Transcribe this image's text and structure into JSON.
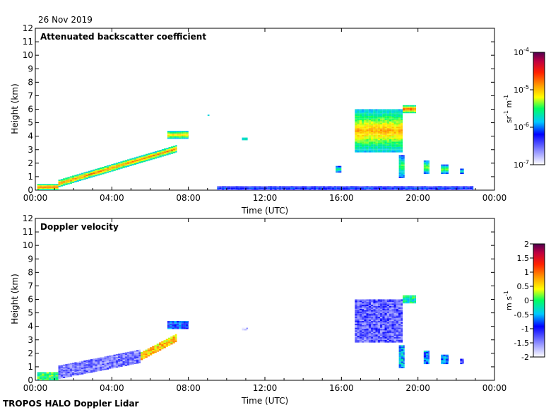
{
  "date": "26 Nov 2019",
  "footer": "TROPOS HALO Doppler Lidar",
  "chart_data": [
    {
      "type": "heatmap",
      "title": "Attenuated backscatter coefficient",
      "xlabel": "Time (UTC)",
      "ylabel": "Height (km)",
      "xlim": [
        0,
        24
      ],
      "ylim": [
        0,
        12
      ],
      "x_ticks": [
        "00:00",
        "04:00",
        "08:00",
        "12:00",
        "16:00",
        "20:00",
        "00:00"
      ],
      "y_ticks": [
        "0",
        "1",
        "2",
        "3",
        "4",
        "5",
        "6",
        "7",
        "8",
        "9",
        "10",
        "11",
        "12"
      ],
      "colorbar": {
        "scale": "log",
        "range": [
          1e-07,
          0.0001
        ],
        "ticks": [
          {
            "base": "10",
            "exp": "-4"
          },
          {
            "base": "10",
            "exp": "-5"
          },
          {
            "base": "10",
            "exp": "-6"
          },
          {
            "base": "10",
            "exp": "-7"
          }
        ],
        "unit": {
          "a": "sr",
          "a_exp": "-1",
          "b": "m",
          "b_exp": "-1"
        }
      },
      "features": [
        {
          "t0": 0.1,
          "t1": 1.2,
          "h0": 0.0,
          "h1": 0.45,
          "level": 0.85
        },
        {
          "t0": 1.2,
          "t1": 7.4,
          "h_start": 0.5,
          "h_end": 3.1,
          "thickness": 0.55,
          "level": 0.8
        },
        {
          "t0": 6.9,
          "t1": 8.0,
          "h0": 3.8,
          "h1": 4.4,
          "level": 0.75
        },
        {
          "t0": 9.0,
          "t1": 9.1,
          "h0": 5.5,
          "h1": 5.6,
          "level": 0.7
        },
        {
          "t0": 10.8,
          "t1": 11.1,
          "h0": 3.7,
          "h1": 3.9,
          "level": 0.75
        },
        {
          "t0": 16.7,
          "t1": 19.2,
          "h0": 2.8,
          "h1": 6.0,
          "level": 0.7
        },
        {
          "t0": 19.2,
          "t1": 19.9,
          "h0": 5.7,
          "h1": 6.3,
          "level": 0.85
        },
        {
          "t0": 19.0,
          "t1": 19.3,
          "h0": 0.9,
          "h1": 2.6,
          "level": 0.55
        },
        {
          "t0": 20.3,
          "t1": 20.6,
          "h0": 1.2,
          "h1": 2.2,
          "level": 0.6
        },
        {
          "t0": 21.2,
          "t1": 21.6,
          "h0": 1.2,
          "h1": 1.9,
          "level": 0.6
        },
        {
          "t0": 22.2,
          "t1": 22.4,
          "h0": 1.2,
          "h1": 1.6,
          "level": 0.55
        },
        {
          "t0": 15.7,
          "t1": 16.0,
          "h0": 1.3,
          "h1": 1.8,
          "level": 0.55
        },
        {
          "t0": 9.5,
          "t1": 22.9,
          "h0": 0.0,
          "h1": 0.3,
          "level": 0.35
        }
      ]
    },
    {
      "type": "heatmap",
      "title": "Doppler velocity",
      "xlabel": "Time (UTC)",
      "ylabel": "Height (km)",
      "xlim": [
        0,
        24
      ],
      "ylim": [
        0,
        12
      ],
      "x_ticks": [
        "00:00",
        "04:00",
        "08:00",
        "12:00",
        "16:00",
        "20:00",
        "00:00"
      ],
      "y_ticks": [
        "0",
        "1",
        "2",
        "3",
        "4",
        "5",
        "6",
        "7",
        "8",
        "9",
        "10",
        "11",
        "12"
      ],
      "colorbar": {
        "scale": "linear",
        "range": [
          -2,
          2
        ],
        "ticks": [
          "2",
          "1.5",
          "1",
          "0.5",
          "0",
          "-0.5",
          "-1",
          "-1.5",
          "-2"
        ],
        "unit": {
          "a": "m",
          "a_exp": "",
          "b": "s",
          "b_exp": "-1"
        }
      },
      "features": [
        {
          "t0": 0.1,
          "t1": 1.2,
          "h0": 0.0,
          "h1": 0.6,
          "value": 0.0
        },
        {
          "t0": 1.2,
          "t1": 5.5,
          "h_start": 0.6,
          "h_end": 1.8,
          "thickness": 1.0,
          "value": -1.4
        },
        {
          "t0": 5.5,
          "t1": 7.4,
          "h_start": 1.8,
          "h_end": 3.2,
          "thickness": 0.6,
          "value": 0.6
        },
        {
          "t0": 6.9,
          "t1": 8.0,
          "h0": 3.8,
          "h1": 4.4,
          "value": -0.8
        },
        {
          "t0": 10.8,
          "t1": 11.1,
          "h0": 3.7,
          "h1": 3.9,
          "value": -1.6
        },
        {
          "t0": 16.7,
          "t1": 19.2,
          "h0": 2.8,
          "h1": 6.0,
          "value": -1.3
        },
        {
          "t0": 19.2,
          "t1": 19.9,
          "h0": 5.7,
          "h1": 6.3,
          "value": -0.2
        },
        {
          "t0": 19.0,
          "t1": 19.3,
          "h0": 0.9,
          "h1": 2.6,
          "value": -0.5
        },
        {
          "t0": 20.3,
          "t1": 20.6,
          "h0": 1.2,
          "h1": 2.2,
          "value": -0.6
        },
        {
          "t0": 21.2,
          "t1": 21.6,
          "h0": 1.2,
          "h1": 1.9,
          "value": -0.7
        },
        {
          "t0": 22.2,
          "t1": 22.4,
          "h0": 1.2,
          "h1": 1.6,
          "value": -1.2
        }
      ]
    }
  ]
}
